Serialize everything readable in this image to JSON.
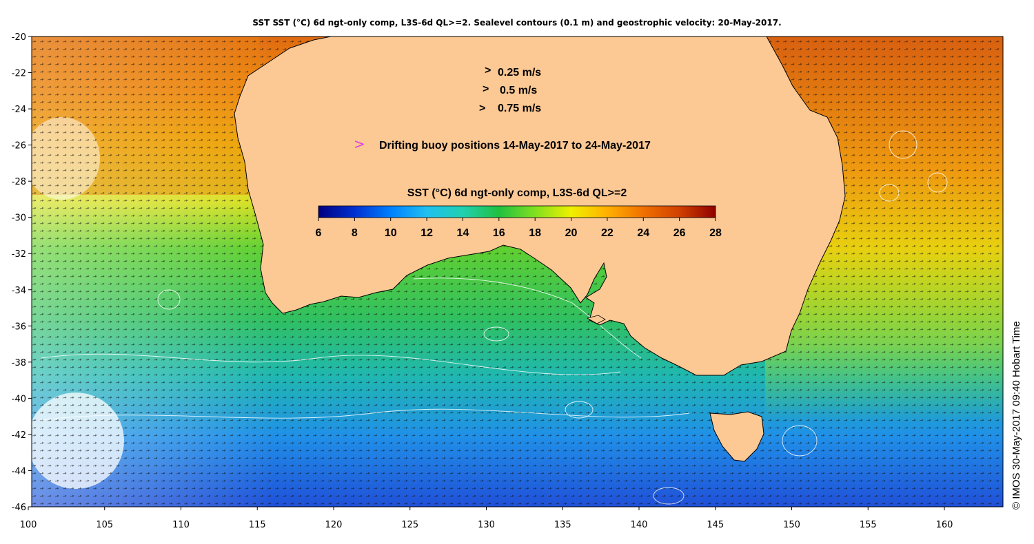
{
  "title": "SST SST (°C) 6d ngt-only comp, L3S-6d QL>=2. Sealevel contours (0.1 m) and geostrophic velocity: 20-May-2017.",
  "credit": "© IMOS 30-May-2017 09:40 Hobart Time",
  "axes": {
    "lon_min": 100,
    "lon_max": 164,
    "lat_min": -46,
    "lat_max": -20,
    "x_ticks": [
      "100",
      "105",
      "110",
      "115",
      "120",
      "125",
      "130",
      "135",
      "140",
      "145",
      "150",
      "155",
      "160"
    ],
    "y_ticks": [
      "-20",
      "-22",
      "-24",
      "-26",
      "-28",
      "-30",
      "-32",
      "-34",
      "-36",
      "-38",
      "-40",
      "-42",
      "-44",
      "-46"
    ]
  },
  "velocity_legend": [
    {
      "label": "0.25 m/s",
      "speed": 0.25
    },
    {
      "label": "0.5 m/s",
      "speed": 0.5
    },
    {
      "label": "0.75 m/s",
      "speed": 0.75
    }
  ],
  "buoy_legend": {
    "label": "Drifting buoy positions 14-May-2017 to 24-May-2017",
    "color": "#e040e0"
  },
  "colorbar": {
    "title": "SST (°C) 6d ngt-only comp, L3S-6d QL>=2",
    "min": 6,
    "max": 28,
    "ticks": [
      "6",
      "8",
      "10",
      "12",
      "14",
      "16",
      "18",
      "20",
      "22",
      "24",
      "26",
      "28"
    ],
    "colors": [
      "#00007f",
      "#0030d0",
      "#0080ff",
      "#20c0f0",
      "#20d0b0",
      "#20c040",
      "#80e020",
      "#f0f000",
      "#ffb000",
      "#f07000",
      "#d04000",
      "#8f0000"
    ]
  },
  "land_color": "#fcc894",
  "ocean_colors": {
    "warm_north": "#e87a10",
    "mid": "#f0d000",
    "temperate": "#40d040",
    "cool": "#20b0d0",
    "cold": "#2050e0"
  }
}
